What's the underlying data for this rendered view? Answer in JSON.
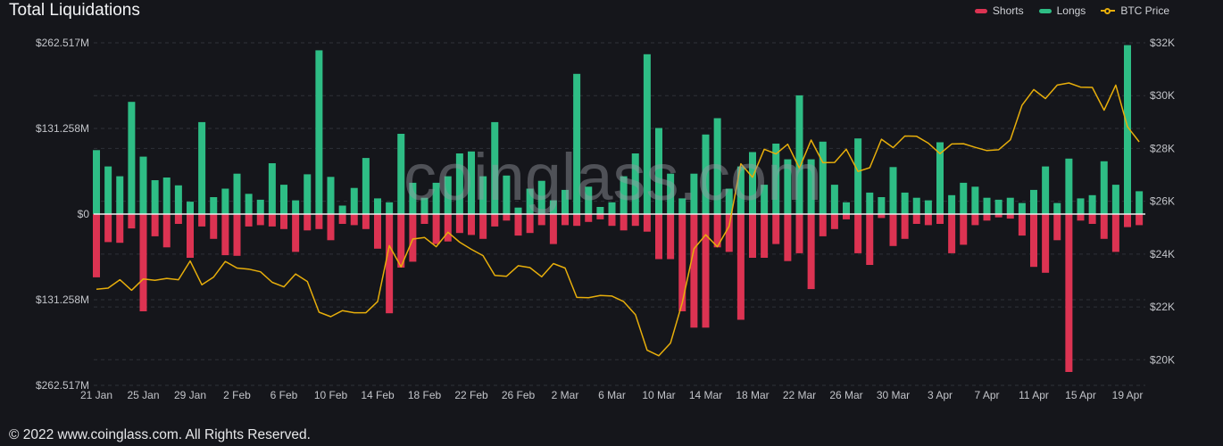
{
  "header": {
    "title": "Total Liquidations"
  },
  "legend": [
    {
      "id": "shorts",
      "label": "Shorts",
      "color": "#dc3352",
      "marker": "pill"
    },
    {
      "id": "longs",
      "label": "Longs",
      "color": "#2ebd85",
      "marker": "pill"
    },
    {
      "id": "btc-price",
      "label": "BTC Price",
      "color": "#e7ae0b",
      "marker": "line-dot"
    }
  ],
  "watermark": "coinglass.com",
  "footer": {
    "copyright": "© 2022 www.coinglass.com. All Rights Reserved."
  },
  "chart_data": {
    "type": "bar+line",
    "title": "Total Liquidations",
    "grid": "dashed",
    "legend_position": "top-right",
    "left_axis": {
      "labels": [
        "$262.517M",
        "$131.258M",
        "$0",
        "$131.258M",
        "$262.517M"
      ],
      "values_M": [
        262.517,
        131.258,
        0,
        -131.258,
        -262.517
      ],
      "ylim_M": [
        -262.517,
        262.517
      ]
    },
    "right_axis": {
      "labels": [
        "$32K",
        "$30K",
        "$28K",
        "$26K",
        "$24K",
        "$22K",
        "$20K"
      ],
      "values_K": [
        32,
        30,
        28,
        26,
        24,
        22,
        20
      ],
      "ylim_K": [
        19.03,
        32
      ]
    },
    "x_tick_labels": [
      "21 Jan",
      "25 Jan",
      "29 Jan",
      "2 Feb",
      "6 Feb",
      "10 Feb",
      "14 Feb",
      "18 Feb",
      "22 Feb",
      "26 Feb",
      "2 Mar",
      "6 Mar",
      "10 Mar",
      "14 Mar",
      "18 Mar",
      "22 Mar",
      "26 Mar",
      "30 Mar",
      "3 Apr",
      "7 Apr",
      "11 Apr",
      "15 Apr",
      "19 Apr"
    ],
    "x_tick_every": 4,
    "categories": [
      "21 Jan",
      "22 Jan",
      "23 Jan",
      "24 Jan",
      "25 Jan",
      "26 Jan",
      "27 Jan",
      "28 Jan",
      "29 Jan",
      "30 Jan",
      "31 Jan",
      "1 Feb",
      "2 Feb",
      "3 Feb",
      "4 Feb",
      "5 Feb",
      "6 Feb",
      "7 Feb",
      "8 Feb",
      "9 Feb",
      "10 Feb",
      "11 Feb",
      "12 Feb",
      "13 Feb",
      "14 Feb",
      "15 Feb",
      "16 Feb",
      "17 Feb",
      "18 Feb",
      "19 Feb",
      "20 Feb",
      "21 Feb",
      "22 Feb",
      "23 Feb",
      "24 Feb",
      "25 Feb",
      "26 Feb",
      "27 Feb",
      "28 Feb",
      "1 Mar",
      "2 Mar",
      "3 Mar",
      "4 Mar",
      "5 Mar",
      "6 Mar",
      "7 Mar",
      "8 Mar",
      "9 Mar",
      "10 Mar",
      "11 Mar",
      "12 Mar",
      "13 Mar",
      "14 Mar",
      "15 Mar",
      "16 Mar",
      "17 Mar",
      "18 Mar",
      "19 Mar",
      "20 Mar",
      "21 Mar",
      "22 Mar",
      "23 Mar",
      "24 Mar",
      "25 Mar",
      "26 Mar",
      "27 Mar",
      "28 Mar",
      "29 Mar",
      "30 Mar",
      "31 Mar",
      "1 Apr",
      "2 Apr",
      "3 Apr",
      "4 Apr",
      "5 Apr",
      "6 Apr",
      "7 Apr",
      "8 Apr",
      "9 Apr",
      "10 Apr",
      "11 Apr",
      "12 Apr",
      "13 Apr",
      "14 Apr",
      "15 Apr",
      "16 Apr",
      "17 Apr",
      "18 Apr",
      "19 Apr",
      "20 Apr"
    ],
    "series": [
      {
        "name": "Longs",
        "kind": "bar",
        "axis": "left",
        "direction": "up",
        "unit": "$M",
        "color": "#2ebd85",
        "values": [
          98,
          73,
          58,
          172,
          88,
          52,
          56,
          44,
          19,
          141,
          26,
          39,
          62,
          31,
          22,
          78,
          45,
          21,
          61,
          251,
          57,
          13,
          40,
          86,
          24,
          18,
          123,
          48,
          25,
          48,
          58,
          93,
          96,
          58,
          141,
          59,
          10,
          39,
          51,
          21,
          37,
          215,
          42,
          11,
          18,
          58,
          93,
          245,
          132,
          62,
          24,
          62,
          122,
          147,
          39,
          73,
          95,
          45,
          108,
          84,
          182,
          84,
          111,
          45,
          18,
          116,
          33,
          26,
          72,
          33,
          25,
          21,
          110,
          29,
          48,
          42,
          25,
          22,
          25,
          17,
          37,
          73,
          17,
          85,
          24,
          29,
          81,
          45,
          259,
          35
        ]
      },
      {
        "name": "Shorts",
        "kind": "bar",
        "axis": "left",
        "direction": "down",
        "unit": "$M",
        "color": "#dc3352",
        "values": [
          97,
          43,
          44,
          22,
          149,
          34,
          51,
          15,
          67,
          19,
          38,
          63,
          64,
          19,
          17,
          19,
          23,
          58,
          25,
          23,
          40,
          15,
          17,
          23,
          53,
          152,
          82,
          73,
          15,
          46,
          42,
          29,
          32,
          38,
          19,
          10,
          33,
          29,
          17,
          46,
          17,
          18,
          12,
          8,
          18,
          25,
          18,
          27,
          69,
          69,
          149,
          174,
          174,
          51,
          58,
          162,
          67,
          67,
          46,
          72,
          60,
          115,
          34,
          23,
          8,
          60,
          78,
          6,
          49,
          38,
          15,
          17,
          15,
          60,
          47,
          17,
          10,
          5,
          7,
          33,
          81,
          90,
          40,
          242,
          10,
          15,
          38,
          58,
          20,
          17
        ]
      },
      {
        "name": "BTC Price",
        "kind": "line",
        "axis": "right",
        "unit": "$K",
        "color": "#e7ae0b",
        "values": [
          22.67,
          22.71,
          23.03,
          22.63,
          23.06,
          23.01,
          23.08,
          23.03,
          23.74,
          22.84,
          23.13,
          23.72,
          23.47,
          23.43,
          23.33,
          22.93,
          22.76,
          23.25,
          22.96,
          21.8,
          21.63,
          21.86,
          21.78,
          21.78,
          22.2,
          24.32,
          23.52,
          24.57,
          24.63,
          24.28,
          24.83,
          24.45,
          24.18,
          23.94,
          23.19,
          23.16,
          23.56,
          23.49,
          23.14,
          23.64,
          23.47,
          22.36,
          22.35,
          22.43,
          22.41,
          22.2,
          21.71,
          20.36,
          20.15,
          20.63,
          22.16,
          24.2,
          24.73,
          24.28,
          25.06,
          27.42,
          26.91,
          27.97,
          27.79,
          28.16,
          27.25,
          28.32,
          27.46,
          27.47,
          27.97,
          27.13,
          27.27,
          28.35,
          28.03,
          28.47,
          28.46,
          28.2,
          27.8,
          28.17,
          28.18,
          28.04,
          27.92,
          27.95,
          28.33,
          29.64,
          30.23,
          29.89,
          30.4,
          30.48,
          30.32,
          30.31,
          29.45,
          30.4,
          28.82,
          28.25
        ]
      }
    ]
  },
  "colors": {
    "background": "#15161b",
    "grid": "#2e3138",
    "zero_line": "#eceded",
    "axis_text": "#c2c4c9"
  }
}
